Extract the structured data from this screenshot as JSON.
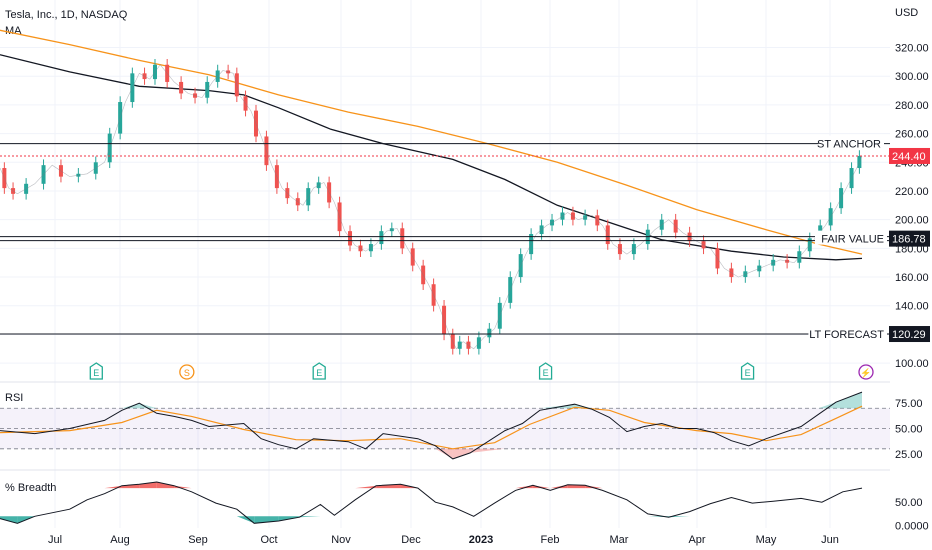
{
  "chart_data": {
    "type": "line",
    "header": {
      "title": "Tesla, Inc., 1D, NASDAQ",
      "indicator": "MA",
      "currency": "USD"
    },
    "price_axis": {
      "ticks": [
        100,
        120,
        140,
        160,
        180,
        200,
        220,
        240,
        260,
        280,
        300,
        320
      ],
      "tick_labels": [
        "100.00",
        "120.00",
        "140.00",
        "160.00",
        "180.00",
        "200.00",
        "220.00",
        "240.00",
        "260.00",
        "280.00",
        "300.00",
        "320.00"
      ],
      "ylim": [
        98,
        335
      ]
    },
    "time_axis": {
      "labels": [
        "Jul",
        "Aug",
        "Sep",
        "Oct",
        "Nov",
        "Dec",
        "2023",
        "Feb",
        "Mar",
        "Apr",
        "May",
        "Jun"
      ]
    },
    "levels": [
      {
        "name": "ST ANCHOR",
        "value": 253.0,
        "show_value": false,
        "color": "#131722"
      },
      {
        "name": "",
        "value": 244.4,
        "label": "244.40",
        "show_value": true,
        "color": "#f23645",
        "dashed": true
      },
      {
        "name": "FAIR VALUE",
        "value": 186.78,
        "label": "186.78",
        "show_value": true,
        "color": "#131722",
        "double": true
      },
      {
        "name": "LT FORECAST",
        "value": 120.29,
        "label": "120.29",
        "show_value": true,
        "color": "#131722"
      }
    ],
    "close_series": [
      {
        "x": 0,
        "y": 236
      },
      {
        "x": 0.25,
        "y": 222
      },
      {
        "x": 0.5,
        "y": 218
      },
      {
        "x": 1,
        "y": 225
      },
      {
        "x": 1.5,
        "y": 238
      },
      {
        "x": 2,
        "y": 230
      },
      {
        "x": 2.5,
        "y": 232
      },
      {
        "x": 3,
        "y": 240
      },
      {
        "x": 3.3,
        "y": 260
      },
      {
        "x": 3.6,
        "y": 282
      },
      {
        "x": 4,
        "y": 302
      },
      {
        "x": 4.3,
        "y": 298
      },
      {
        "x": 4.6,
        "y": 308
      },
      {
        "x": 5,
        "y": 296
      },
      {
        "x": 5.4,
        "y": 288
      },
      {
        "x": 5.8,
        "y": 285
      },
      {
        "x": 6.1,
        "y": 296
      },
      {
        "x": 6.4,
        "y": 304
      },
      {
        "x": 6.7,
        "y": 302
      },
      {
        "x": 6.9,
        "y": 286
      },
      {
        "x": 7.2,
        "y": 276
      },
      {
        "x": 7.5,
        "y": 258
      },
      {
        "x": 7.8,
        "y": 238
      },
      {
        "x": 8.1,
        "y": 222
      },
      {
        "x": 8.4,
        "y": 215
      },
      {
        "x": 8.7,
        "y": 210
      },
      {
        "x": 9,
        "y": 222
      },
      {
        "x": 9.3,
        "y": 226
      },
      {
        "x": 9.6,
        "y": 212
      },
      {
        "x": 9.9,
        "y": 192
      },
      {
        "x": 10.2,
        "y": 182
      },
      {
        "x": 10.5,
        "y": 178
      },
      {
        "x": 10.8,
        "y": 183
      },
      {
        "x": 11.1,
        "y": 192
      },
      {
        "x": 11.4,
        "y": 194
      },
      {
        "x": 11.7,
        "y": 180
      },
      {
        "x": 12,
        "y": 168
      },
      {
        "x": 12.3,
        "y": 155
      },
      {
        "x": 12.6,
        "y": 140
      },
      {
        "x": 12.9,
        "y": 120
      },
      {
        "x": 13.1,
        "y": 110
      },
      {
        "x": 13.3,
        "y": 115
      },
      {
        "x": 13.6,
        "y": 110
      },
      {
        "x": 13.9,
        "y": 118
      },
      {
        "x": 14.2,
        "y": 124
      },
      {
        "x": 14.5,
        "y": 142
      },
      {
        "x": 14.8,
        "y": 160
      },
      {
        "x": 15.1,
        "y": 176
      },
      {
        "x": 15.4,
        "y": 190
      },
      {
        "x": 15.7,
        "y": 196
      },
      {
        "x": 16,
        "y": 200
      },
      {
        "x": 16.3,
        "y": 205
      },
      {
        "x": 16.6,
        "y": 200
      },
      {
        "x": 17,
        "y": 203
      },
      {
        "x": 17.3,
        "y": 196
      },
      {
        "x": 17.6,
        "y": 183
      },
      {
        "x": 18,
        "y": 176
      },
      {
        "x": 18.4,
        "y": 183
      },
      {
        "x": 18.8,
        "y": 193
      },
      {
        "x": 19.2,
        "y": 200
      },
      {
        "x": 19.6,
        "y": 191
      },
      {
        "x": 20,
        "y": 185
      },
      {
        "x": 20.4,
        "y": 180
      },
      {
        "x": 20.8,
        "y": 166
      },
      {
        "x": 21.2,
        "y": 160
      },
      {
        "x": 21.6,
        "y": 164
      },
      {
        "x": 22,
        "y": 168
      },
      {
        "x": 22.4,
        "y": 172
      },
      {
        "x": 22.8,
        "y": 170
      },
      {
        "x": 23.1,
        "y": 178
      },
      {
        "x": 23.4,
        "y": 187
      },
      {
        "x": 23.7,
        "y": 196
      },
      {
        "x": 24,
        "y": 208
      },
      {
        "x": 24.3,
        "y": 222
      },
      {
        "x": 24.6,
        "y": 236
      },
      {
        "x": 24.75,
        "y": 244.4
      }
    ],
    "series": [
      {
        "color": "#131722",
        "values": [
          {
            "x": 0,
            "y": 315
          },
          {
            "x": 2,
            "y": 303
          },
          {
            "x": 4,
            "y": 293
          },
          {
            "x": 6,
            "y": 290
          },
          {
            "x": 7,
            "y": 287
          },
          {
            "x": 8,
            "y": 278
          },
          {
            "x": 9.5,
            "y": 263
          },
          {
            "x": 11,
            "y": 253
          },
          {
            "x": 13,
            "y": 242
          },
          {
            "x": 14.5,
            "y": 228
          },
          {
            "x": 16,
            "y": 210
          },
          {
            "x": 17.5,
            "y": 198
          },
          {
            "x": 19,
            "y": 186
          },
          {
            "x": 21,
            "y": 178
          },
          {
            "x": 22.5,
            "y": 174
          },
          {
            "x": 24,
            "y": 172
          },
          {
            "x": 24.75,
            "y": 173
          }
        ]
      },
      {
        "color": "#f7931a",
        "values": [
          {
            "x": 0,
            "y": 332
          },
          {
            "x": 2,
            "y": 322
          },
          {
            "x": 4,
            "y": 311
          },
          {
            "x": 6,
            "y": 301
          },
          {
            "x": 8,
            "y": 287
          },
          {
            "x": 10,
            "y": 275
          },
          {
            "x": 12,
            "y": 265
          },
          {
            "x": 14,
            "y": 253
          },
          {
            "x": 16,
            "y": 240
          },
          {
            "x": 18,
            "y": 224
          },
          {
            "x": 20,
            "y": 207
          },
          {
            "x": 22,
            "y": 193
          },
          {
            "x": 23.5,
            "y": 183
          },
          {
            "x": 24.75,
            "y": 176
          }
        ]
      }
    ],
    "events": [
      {
        "kind": "earnings",
        "label": "E",
        "x": 2.65,
        "color": "#22ab94"
      },
      {
        "kind": "split",
        "label": "S",
        "x": 5.25,
        "color": "#f7931a"
      },
      {
        "kind": "earnings",
        "label": "E",
        "x": 9.05,
        "color": "#22ab94"
      },
      {
        "kind": "earnings",
        "label": "E",
        "x": 15.55,
        "color": "#22ab94"
      },
      {
        "kind": "earnings",
        "label": "E",
        "x": 21.35,
        "color": "#22ab94"
      },
      {
        "kind": "event",
        "label": "⚡",
        "x": 24.75,
        "color": "#9c27b0"
      }
    ],
    "rsi": {
      "title": "RSI",
      "ticks": [
        25,
        50,
        75
      ],
      "tick_labels": [
        "25.00",
        "50.00",
        "75.00"
      ],
      "band": [
        30,
        70
      ],
      "ylim": [
        15,
        90
      ],
      "values": [
        {
          "x": 0,
          "y": 48
        },
        {
          "x": 1,
          "y": 45
        },
        {
          "x": 2,
          "y": 50
        },
        {
          "x": 3,
          "y": 58
        },
        {
          "x": 3.5,
          "y": 68
        },
        {
          "x": 4,
          "y": 75
        },
        {
          "x": 4.5,
          "y": 65
        },
        {
          "x": 5,
          "y": 62
        },
        {
          "x": 5.5,
          "y": 58
        },
        {
          "x": 6,
          "y": 52
        },
        {
          "x": 7,
          "y": 55
        },
        {
          "x": 7.5,
          "y": 40
        },
        {
          "x": 8,
          "y": 34
        },
        {
          "x": 8.5,
          "y": 30
        },
        {
          "x": 9,
          "y": 40
        },
        {
          "x": 10,
          "y": 37
        },
        {
          "x": 10.5,
          "y": 30
        },
        {
          "x": 11,
          "y": 45
        },
        {
          "x": 12,
          "y": 40
        },
        {
          "x": 12.5,
          "y": 33
        },
        {
          "x": 13,
          "y": 20
        },
        {
          "x": 13.5,
          "y": 26
        },
        {
          "x": 14.5,
          "y": 48
        },
        {
          "x": 15,
          "y": 55
        },
        {
          "x": 15.5,
          "y": 68
        },
        {
          "x": 16.5,
          "y": 74
        },
        {
          "x": 17,
          "y": 69
        },
        {
          "x": 17.5,
          "y": 61
        },
        {
          "x": 18,
          "y": 47
        },
        {
          "x": 18.5,
          "y": 52
        },
        {
          "x": 19,
          "y": 55
        },
        {
          "x": 19.5,
          "y": 50
        },
        {
          "x": 20,
          "y": 50
        },
        {
          "x": 20.5,
          "y": 46
        },
        {
          "x": 21,
          "y": 38
        },
        {
          "x": 21.5,
          "y": 33
        },
        {
          "x": 22,
          "y": 40
        },
        {
          "x": 23,
          "y": 52
        },
        {
          "x": 23.5,
          "y": 64
        },
        {
          "x": 24,
          "y": 76
        },
        {
          "x": 24.75,
          "y": 86
        }
      ],
      "ma": [
        {
          "x": 0,
          "y": 46
        },
        {
          "x": 2,
          "y": 48
        },
        {
          "x": 3.5,
          "y": 56
        },
        {
          "x": 4.5,
          "y": 68
        },
        {
          "x": 5.5,
          "y": 62
        },
        {
          "x": 7,
          "y": 49
        },
        {
          "x": 8.5,
          "y": 39
        },
        {
          "x": 10,
          "y": 38
        },
        {
          "x": 11.5,
          "y": 40
        },
        {
          "x": 13,
          "y": 30
        },
        {
          "x": 14.2,
          "y": 36
        },
        {
          "x": 15.2,
          "y": 54
        },
        {
          "x": 16.5,
          "y": 71
        },
        {
          "x": 17.5,
          "y": 68
        },
        {
          "x": 18.5,
          "y": 56
        },
        {
          "x": 20,
          "y": 48
        },
        {
          "x": 21,
          "y": 45
        },
        {
          "x": 22,
          "y": 38
        },
        {
          "x": 23,
          "y": 44
        },
        {
          "x": 24,
          "y": 60
        },
        {
          "x": 24.75,
          "y": 72
        }
      ]
    },
    "breadth": {
      "title": "% Breadth",
      "ticks": [
        0,
        50
      ],
      "tick_labels": [
        "0.0000",
        "50.00"
      ],
      "ylim": [
        -5,
        110
      ],
      "upper": 80,
      "lower": 20,
      "values": [
        {
          "x": 0,
          "y": 15
        },
        {
          "x": 0.5,
          "y": 5
        },
        {
          "x": 1,
          "y": 20
        },
        {
          "x": 2,
          "y": 35
        },
        {
          "x": 2.5,
          "y": 55
        },
        {
          "x": 3,
          "y": 68
        },
        {
          "x": 3.5,
          "y": 85
        },
        {
          "x": 4,
          "y": 88
        },
        {
          "x": 4.5,
          "y": 93
        },
        {
          "x": 5,
          "y": 85
        },
        {
          "x": 5.5,
          "y": 72
        },
        {
          "x": 6.2,
          "y": 48
        },
        {
          "x": 6.8,
          "y": 35
        },
        {
          "x": 7.3,
          "y": 5
        },
        {
          "x": 8,
          "y": 10
        },
        {
          "x": 8.6,
          "y": 18
        },
        {
          "x": 9.2,
          "y": 45
        },
        {
          "x": 9.6,
          "y": 22
        },
        {
          "x": 10.2,
          "y": 55
        },
        {
          "x": 10.8,
          "y": 85
        },
        {
          "x": 11.5,
          "y": 88
        },
        {
          "x": 12,
          "y": 80
        },
        {
          "x": 12.5,
          "y": 50
        },
        {
          "x": 13,
          "y": 40
        },
        {
          "x": 13.6,
          "y": 20
        },
        {
          "x": 14.2,
          "y": 48
        },
        {
          "x": 14.8,
          "y": 75
        },
        {
          "x": 15.3,
          "y": 86
        },
        {
          "x": 15.8,
          "y": 75
        },
        {
          "x": 16.3,
          "y": 87
        },
        {
          "x": 16.8,
          "y": 86
        },
        {
          "x": 17.3,
          "y": 75
        },
        {
          "x": 18,
          "y": 55
        },
        {
          "x": 18.6,
          "y": 25
        },
        {
          "x": 19.2,
          "y": 18
        },
        {
          "x": 19.8,
          "y": 30
        },
        {
          "x": 20.4,
          "y": 47
        },
        {
          "x": 21,
          "y": 60
        },
        {
          "x": 21.6,
          "y": 48
        },
        {
          "x": 22.2,
          "y": 52
        },
        {
          "x": 23,
          "y": 58
        },
        {
          "x": 23.6,
          "y": 50
        },
        {
          "x": 24.2,
          "y": 72
        },
        {
          "x": 24.75,
          "y": 80
        }
      ]
    }
  }
}
